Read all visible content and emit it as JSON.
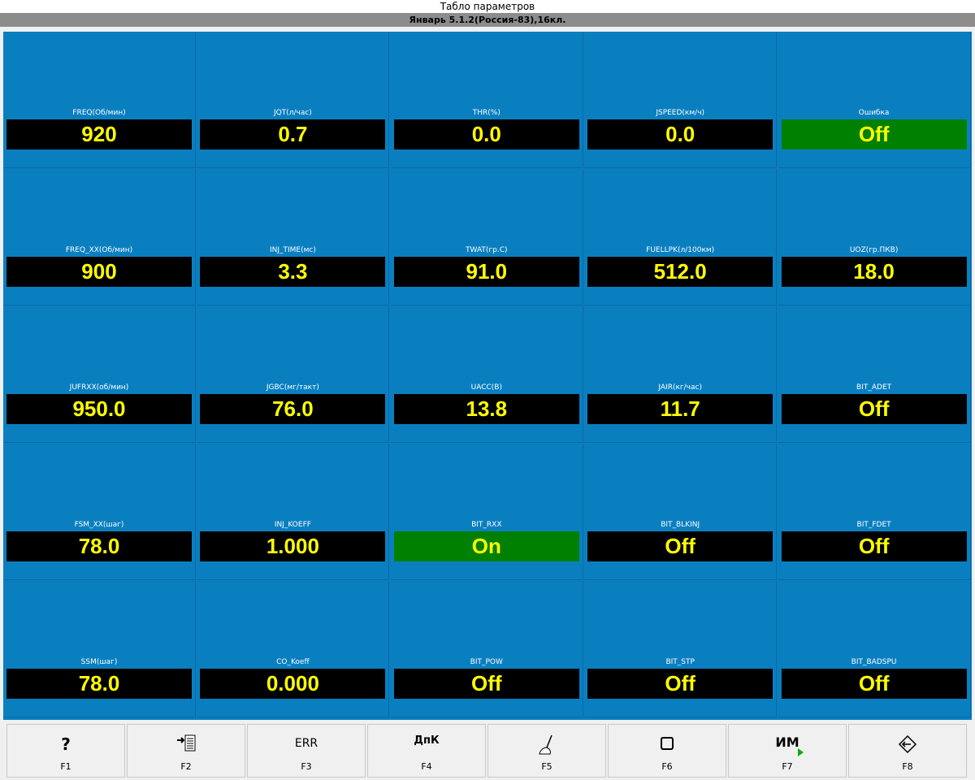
{
  "header": {
    "title": "Табло параметров",
    "subtitle": "Январь 5.1.2(Россия-83),16кл."
  },
  "cells": [
    {
      "label": "FREQ(Об/мин)",
      "value": "920",
      "color": "#000000"
    },
    {
      "label": "JQT(л/час)",
      "value": "0.7",
      "color": "#000000"
    },
    {
      "label": "THR(%)",
      "value": "0.0",
      "color": "#000000"
    },
    {
      "label": "JSPEED(км/ч)",
      "value": "0.0",
      "color": "#000000"
    },
    {
      "label": "Ошибка",
      "value": "Off",
      "color": "#008000"
    },
    {
      "label": "FREQ_XX(Об/мин)",
      "value": "900",
      "color": "#000000"
    },
    {
      "label": "INJ_TIME(мс)",
      "value": "3.3",
      "color": "#000000"
    },
    {
      "label": "TWAT(гр.C)",
      "value": "91.0",
      "color": "#000000"
    },
    {
      "label": "FUELLPK(л/100км)",
      "value": "512.0",
      "color": "#000000"
    },
    {
      "label": "UOZ(гр.ПКВ)",
      "value": "18.0",
      "color": "#000000"
    },
    {
      "label": "JUFRXX(об/мин)",
      "value": "950.0",
      "color": "#000000"
    },
    {
      "label": "JGBC(мг/такт)",
      "value": "76.0",
      "color": "#000000"
    },
    {
      "label": "UACC(В)",
      "value": "13.8",
      "color": "#000000"
    },
    {
      "label": "JAIR(кг/час)",
      "value": "11.7",
      "color": "#000000"
    },
    {
      "label": "BIT_ADET",
      "value": "Off",
      "color": "#000000"
    },
    {
      "label": "FSM_XX(шаг)",
      "value": "78.0",
      "color": "#000000"
    },
    {
      "label": "INJ_KOEFF",
      "value": "1.000",
      "color": "#000000"
    },
    {
      "label": "BIT_RXX",
      "value": "On",
      "color": "#008000"
    },
    {
      "label": "BIT_BLKINJ",
      "value": "Off",
      "color": "#000000"
    },
    {
      "label": "BIT_FDET",
      "value": "Off",
      "color": "#000000"
    },
    {
      "label": "SSM(шаг)",
      "value": "78.0",
      "color": "#000000"
    },
    {
      "label": "CO_Koeff",
      "value": "0.000",
      "color": "#000000"
    },
    {
      "label": "BIT_POW",
      "value": "Off",
      "color": "#000000"
    },
    {
      "label": "BIT_STP",
      "value": "Off",
      "color": "#000000"
    },
    {
      "label": "BIT_BADSPU",
      "value": "Off",
      "color": "#000000"
    }
  ],
  "toolbar": [
    {
      "icon": "?",
      "key": "F1"
    },
    {
      "key": "F2"
    },
    {
      "icon": "ERR",
      "key": "F3"
    },
    {
      "icon": "ДпК",
      "key": "F4"
    },
    {
      "key": "F5"
    },
    {
      "key": "F6"
    },
    {
      "icon": "ИМ",
      "key": "F7"
    },
    {
      "key": "F8"
    }
  ]
}
